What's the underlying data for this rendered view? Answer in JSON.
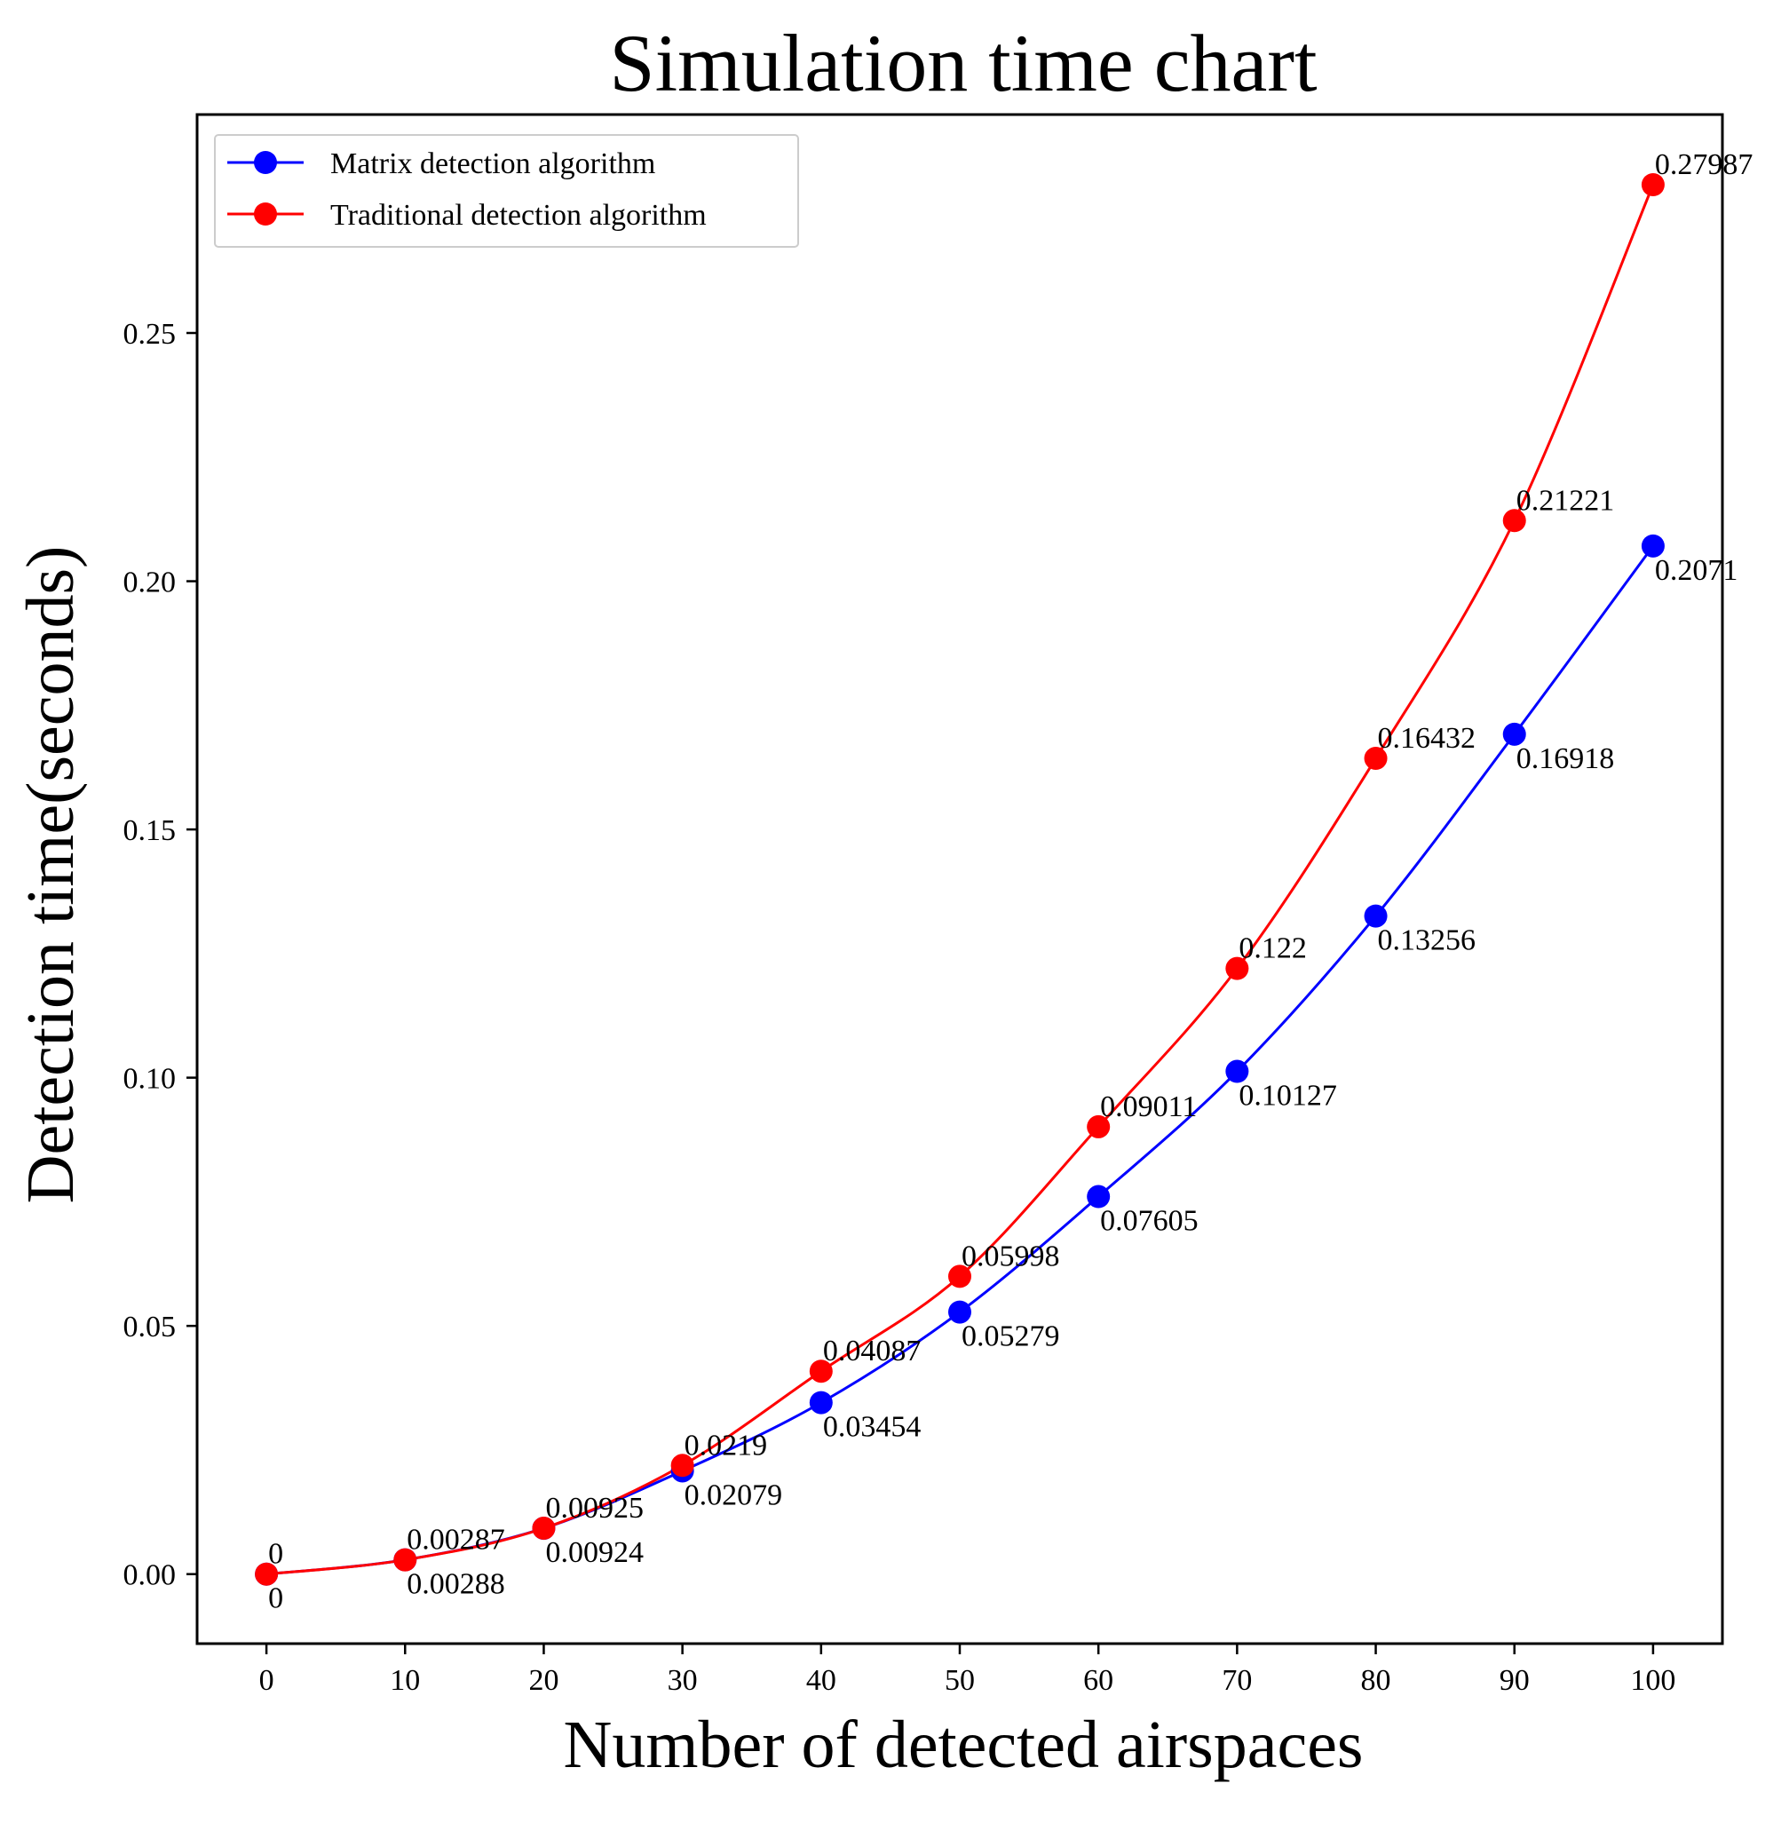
{
  "chart_data": {
    "type": "line",
    "title": "Simulation time chart",
    "xlabel": "Number of detected airspaces",
    "ylabel": "Detection time(seconds)",
    "x": [
      0,
      10,
      20,
      30,
      40,
      50,
      60,
      70,
      80,
      90,
      100
    ],
    "xlim": [
      -5,
      105
    ],
    "ylim": [
      -0.014,
      0.294
    ],
    "xticks": [
      0,
      10,
      20,
      30,
      40,
      50,
      60,
      70,
      80,
      90,
      100
    ],
    "xtick_labels": [
      "0",
      "10",
      "20",
      "30",
      "40",
      "50",
      "60",
      "70",
      "80",
      "90",
      "100"
    ],
    "yticks": [
      0.0,
      0.05,
      0.1,
      0.15,
      0.2,
      0.25
    ],
    "ytick_labels": [
      "0.00",
      "0.05",
      "0.10",
      "0.15",
      "0.20",
      "0.25"
    ],
    "grid": false,
    "legend_position": "top-left",
    "series": [
      {
        "name": "Matrix detection algorithm",
        "color": "#0000ff",
        "values": [
          0,
          0.00288,
          0.00924,
          0.02079,
          0.03454,
          0.05279,
          0.07605,
          0.10127,
          0.13256,
          0.16918,
          0.2071
        ],
        "labels": [
          "0",
          "0.00288",
          "0.00924",
          "0.02079",
          "0.03454",
          "0.05279",
          "0.07605",
          "0.10127",
          "0.13256",
          "0.16918",
          "0.2071"
        ],
        "label_position": "below"
      },
      {
        "name": "Traditional detection algorithm",
        "color": "#ff0000",
        "values": [
          0,
          0.00287,
          0.00925,
          0.0219,
          0.04087,
          0.05998,
          0.09011,
          0.122,
          0.16432,
          0.21221,
          0.27987
        ],
        "labels": [
          "0",
          "0.00287",
          "0.00925",
          "0.0219",
          "0.04087",
          "0.05998",
          "0.09011",
          "0.122",
          "0.16432",
          "0.21221",
          "0.27987"
        ],
        "label_position": "above"
      }
    ]
  }
}
